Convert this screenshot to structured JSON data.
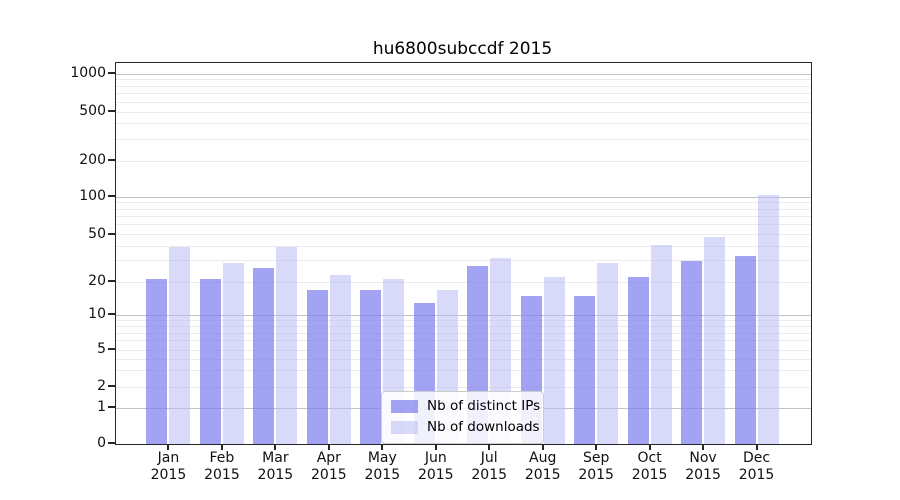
{
  "chart_data": {
    "type": "bar",
    "title": "hu6800subccdf 2015",
    "categories": [
      "Jan",
      "Feb",
      "Mar",
      "Apr",
      "May",
      "Jun",
      "Jul",
      "Aug",
      "Sep",
      "Oct",
      "Nov",
      "Dec"
    ],
    "x_year_label": "2015",
    "series": [
      {
        "name": "Nb of distinct IPs",
        "color": "rgba(128,128,240,0.72)",
        "values": [
          21,
          21,
          26,
          17,
          17,
          13,
          27,
          15,
          15,
          22,
          30,
          33
        ]
      },
      {
        "name": "Nb of downloads",
        "color": "rgba(186,186,246,0.55)",
        "values": [
          39,
          29,
          39,
          23,
          21,
          17,
          32,
          22,
          29,
          41,
          48,
          104
        ]
      }
    ],
    "yaxis": {
      "ticks": [
        0,
        1,
        2,
        5,
        10,
        20,
        50,
        100,
        200,
        500,
        1000
      ],
      "scale": "log-with-linear-zero-segment",
      "ylim": [
        0,
        1150
      ],
      "major_grid_at": [
        1,
        10,
        100,
        1000
      ],
      "minor_grid_at": [
        2,
        3,
        4,
        5,
        6,
        7,
        8,
        9,
        20,
        30,
        40,
        50,
        60,
        70,
        80,
        90,
        200,
        300,
        400,
        500,
        600,
        700,
        800,
        900
      ]
    },
    "xaxis": {
      "tick_count": 12
    },
    "legend": {
      "position": "lower-center"
    },
    "grid": {
      "major_color": "#c3c3c3",
      "minor_color": "#ebebeb",
      "horizontal_only": true
    },
    "plot_bg": "#ffffff",
    "spine_color": "#262626"
  }
}
